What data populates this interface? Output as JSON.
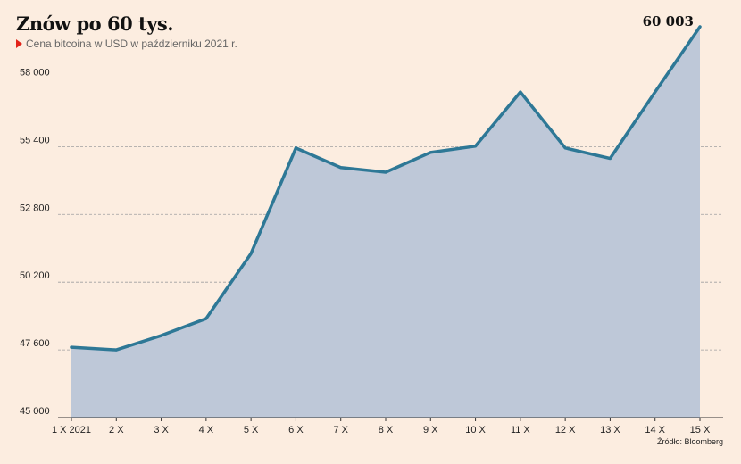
{
  "header": {
    "title": "Znów po 60 tys.",
    "subtitle": "Cena bitcoina w USD w październiku 2021 r."
  },
  "source": "Źródło: Bloomberg",
  "colors": {
    "background": "#fcede0",
    "line": "#2e7896",
    "area": "#bec8d8",
    "grid": "#a0a0a0",
    "marker": "#e2231a"
  },
  "chart_data": {
    "type": "area",
    "title": "Znów po 60 tys.",
    "subtitle": "Cena bitcoina w USD w październiku 2021 r.",
    "categories": [
      "1 X 2021",
      "2 X",
      "3 X",
      "4 X",
      "5 X",
      "6 X",
      "7 X",
      "8 X",
      "9 X",
      "10 X",
      "11 X",
      "12 X",
      "13 X",
      "14 X",
      "15 X"
    ],
    "values": [
      47700,
      47600,
      48150,
      48800,
      51300,
      55350,
      54600,
      54420,
      55180,
      55420,
      57500,
      55350,
      54950,
      57500,
      60003
    ],
    "ylim": [
      45000,
      60003
    ],
    "yticks": [
      45000,
      47600,
      50200,
      52800,
      55400,
      58000
    ],
    "ytick_labels": [
      "45 000",
      "47 600",
      "50 200",
      "52 800",
      "55 400",
      "58 000"
    ],
    "annotations": [
      {
        "category": "15 X",
        "label": "60 003"
      }
    ],
    "grid": true,
    "legend": "none"
  }
}
